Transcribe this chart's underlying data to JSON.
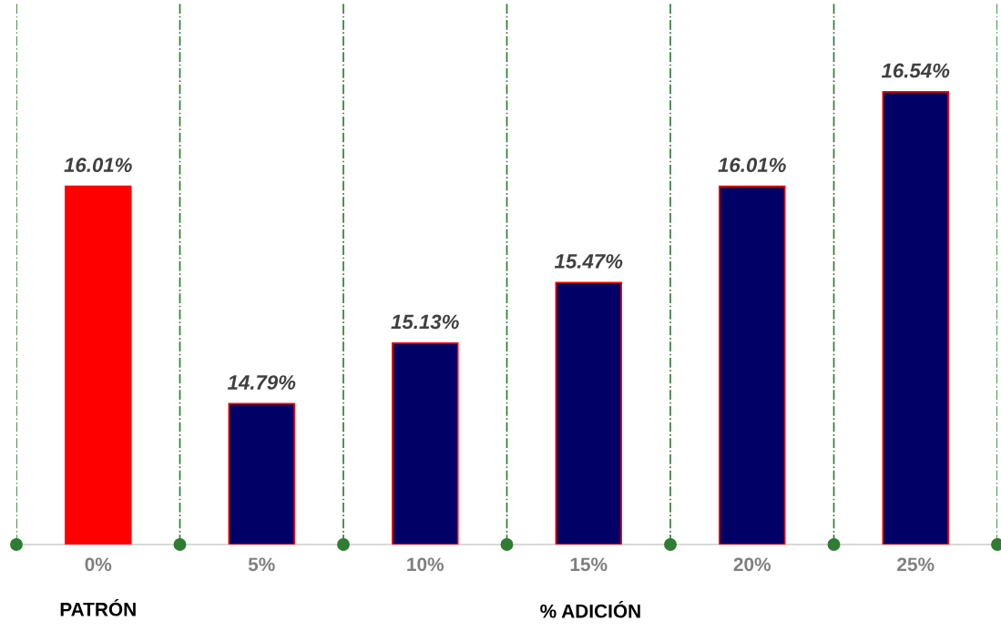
{
  "chart_data": {
    "type": "bar",
    "categories": [
      "0%",
      "5%",
      "10%",
      "15%",
      "20%",
      "25%"
    ],
    "values": [
      16.01,
      14.79,
      15.13,
      15.47,
      16.01,
      16.54
    ],
    "colors": [
      "#ff0000",
      "#000066",
      "#000066",
      "#000066",
      "#000066",
      "#000066"
    ],
    "value_labels": [
      "16.01%",
      "14.79%",
      "15.13%",
      "15.47%",
      "16.01%",
      "16.54%"
    ],
    "xlabel": "% ADICIÓN",
    "annotations": [
      "PATRÓN"
    ],
    "ylim": [
      14,
      17.04
    ],
    "tick_labels": "x",
    "grid": "x",
    "legend": false
  }
}
